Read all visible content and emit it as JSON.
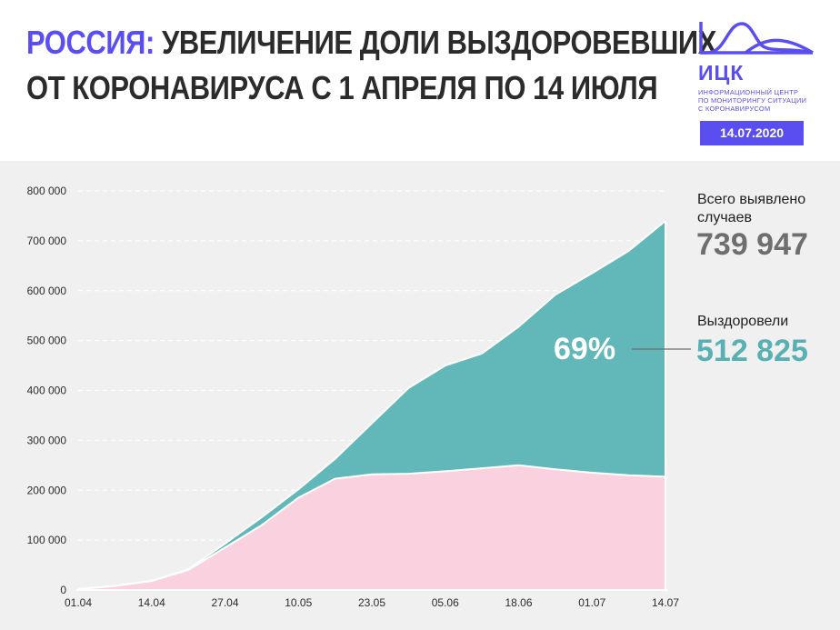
{
  "header": {
    "title_accent": "РОССИЯ:",
    "title_line1_rest": " УВЕЛИЧЕНИЕ ДОЛИ ВЫЗДОРОВЕВШИХ",
    "title_line2": "ОТ КОРОНАВИРУСА С 1 АПРЕЛЯ ПО 14 ИЮЛЯ"
  },
  "logo": {
    "name": "ИЦК",
    "subtitle_lines": [
      "ИНФОРМАЦИОННЫЙ ЦЕНТР",
      "ПО МОНИТОРИНГУ СИТУАЦИИ",
      "С КОРОНАВИРУСОМ"
    ],
    "icon": "mountain-wave-logo-icon",
    "color": "#5a4ef0"
  },
  "date": "14.07.2020",
  "stats": {
    "total_label": "Всего выявлено случаев",
    "total_value": "739 947",
    "recovered_label": "Выздоровели",
    "recovered_value": "512 825",
    "recovered_share": "69%"
  },
  "colors": {
    "accent": "#5a4ef0",
    "recovered": "#62b7b9",
    "active": "#fad1de",
    "total_text": "#6e6e6e",
    "recovered_text": "#58b0b2"
  },
  "chart_data": {
    "type": "area",
    "x": [
      "01.04",
      "08.04",
      "14.04",
      "20.04",
      "27.04",
      "03.05",
      "10.05",
      "16.05",
      "23.05",
      "29.05",
      "05.06",
      "11.06",
      "18.06",
      "24.06",
      "01.07",
      "07.07",
      "14.07"
    ],
    "x_ticks": [
      "01.04",
      "14.04",
      "27.04",
      "10.05",
      "23.05",
      "05.06",
      "18.06",
      "01.07",
      "14.07"
    ],
    "series": [
      {
        "name": "Выздоровели",
        "color": "#62b7b9",
        "values": [
          0,
          200,
          500,
          1500,
          8000,
          16000,
          17000,
          40000,
          102000,
          172000,
          212000,
          230000,
          278000,
          350000,
          400000,
          450000,
          512825
        ]
      },
      {
        "name": "",
        "color": "#fad1de",
        "values": [
          2000,
          8000,
          18000,
          40000,
          85000,
          130000,
          185000,
          223000,
          232000,
          233000,
          238000,
          244000,
          250000,
          242000,
          235000,
          230000,
          227122
        ]
      }
    ],
    "total": [
      2000,
      8200,
      18500,
      41500,
      93000,
      146000,
      202000,
      263000,
      334000,
      405000,
      450000,
      474000,
      528000,
      592000,
      635000,
      680000,
      739947
    ],
    "ylim": [
      0,
      800000
    ],
    "y_ticks": [
      0,
      100000,
      200000,
      300000,
      400000,
      500000,
      600000,
      700000,
      800000
    ],
    "y_tick_labels": [
      "0",
      "100 000",
      "200 000",
      "300 000",
      "400 000",
      "500 000",
      "600 000",
      "700 000",
      "800 000"
    ],
    "grid": "horizontal-dashed",
    "annotation": "69%"
  }
}
